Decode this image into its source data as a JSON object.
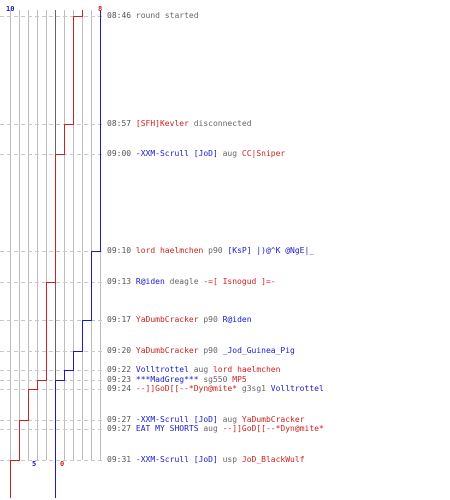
{
  "colors": {
    "blue": "#1a1acc",
    "red": "#cc2222",
    "gray": "#666666",
    "grid": "#bdbdbd",
    "time": "#555555"
  },
  "scores": {
    "blue_start": "10",
    "red_start": "8",
    "blue_end": "5",
    "red_end": "0"
  },
  "chart_data": {
    "type": "line",
    "x_label": "",
    "y_label": "",
    "series": [
      {
        "color": "#1a1acc",
        "values_by_event": [
          10,
          10,
          10,
          10,
          9,
          9,
          8,
          7,
          6,
          5,
          5,
          5,
          5,
          5
        ]
      },
      {
        "color": "#cc2222",
        "values_by_event": [
          8,
          7,
          6,
          5,
          5,
          4,
          4,
          4,
          4,
          3,
          2,
          1,
          1,
          0
        ]
      }
    ]
  },
  "events": [
    {
      "time": "08:46",
      "parts": [
        {
          "text": "round started",
          "style": "gray"
        }
      ]
    },
    {
      "time": "08:57",
      "parts": [
        {
          "text": "[SFH]Kevler",
          "style": "red"
        },
        {
          "text": " disconnected",
          "style": "gray"
        }
      ]
    },
    {
      "time": "09:00",
      "parts": [
        {
          "text": "-XXM-Scrull [JoD]",
          "style": "blue"
        },
        {
          "text": " aug ",
          "style": "gray"
        },
        {
          "text": "CC|Sniper",
          "style": "red"
        }
      ]
    },
    {
      "time": "09:10",
      "parts": [
        {
          "text": "lord haelmchen",
          "style": "red"
        },
        {
          "text": " p90 ",
          "style": "gray"
        },
        {
          "text": "[KsP] |)@^K @NgE|_",
          "style": "blue"
        }
      ]
    },
    {
      "time": "09:13",
      "parts": [
        {
          "text": "R@iden",
          "style": "blue"
        },
        {
          "text": " deagle ",
          "style": "gray"
        },
        {
          "text": "-=[ Isnogud ]=-",
          "style": "red"
        }
      ]
    },
    {
      "time": "09:17",
      "parts": [
        {
          "text": "YaDumbCracker",
          "style": "red"
        },
        {
          "text": " p90 ",
          "style": "gray"
        },
        {
          "text": "R@iden",
          "style": "blue"
        }
      ]
    },
    {
      "time": "09:20",
      "parts": [
        {
          "text": "YaDumbCracker",
          "style": "red"
        },
        {
          "text": " p90 ",
          "style": "gray"
        },
        {
          "text": "_Jod_Guinea_Pig",
          "style": "blue"
        }
      ]
    },
    {
      "time": "09:22",
      "parts": [
        {
          "text": "Volltrottel",
          "style": "blue"
        },
        {
          "text": " aug ",
          "style": "gray"
        },
        {
          "text": "lord haelmchen",
          "style": "red"
        }
      ]
    },
    {
      "time": "09:23",
      "parts": [
        {
          "text": "***MadGreg***",
          "style": "blue"
        },
        {
          "text": " sg550 ",
          "style": "gray"
        },
        {
          "text": "MP5",
          "style": "red"
        }
      ]
    },
    {
      "time": "09:24",
      "parts": [
        {
          "text": "--]]GoD[[--*Dyn@mite*",
          "style": "red"
        },
        {
          "text": " g3sg1 ",
          "style": "gray"
        },
        {
          "text": "Volltrottel",
          "style": "blue"
        }
      ]
    },
    {
      "time": "09:27",
      "parts": [
        {
          "text": "-XXM-Scrull [JoD]",
          "style": "blue"
        },
        {
          "text": " aug ",
          "style": "gray"
        },
        {
          "text": "YaDumbCracker",
          "style": "red"
        }
      ]
    },
    {
      "time": "09:27",
      "parts": [
        {
          "text": "EAT MY SHORTS",
          "style": "blue"
        },
        {
          "text": " aug ",
          "style": "gray"
        },
        {
          "text": "--]]GoD[[--*Dyn@mite*",
          "style": "red"
        }
      ]
    },
    {
      "time": "09:31",
      "parts": [
        {
          "text": "-XXM-Scrull [JoD]",
          "style": "blue"
        },
        {
          "text": " usp ",
          "style": "gray"
        },
        {
          "text": "JoD_BlackWulf",
          "style": "red"
        }
      ]
    }
  ]
}
